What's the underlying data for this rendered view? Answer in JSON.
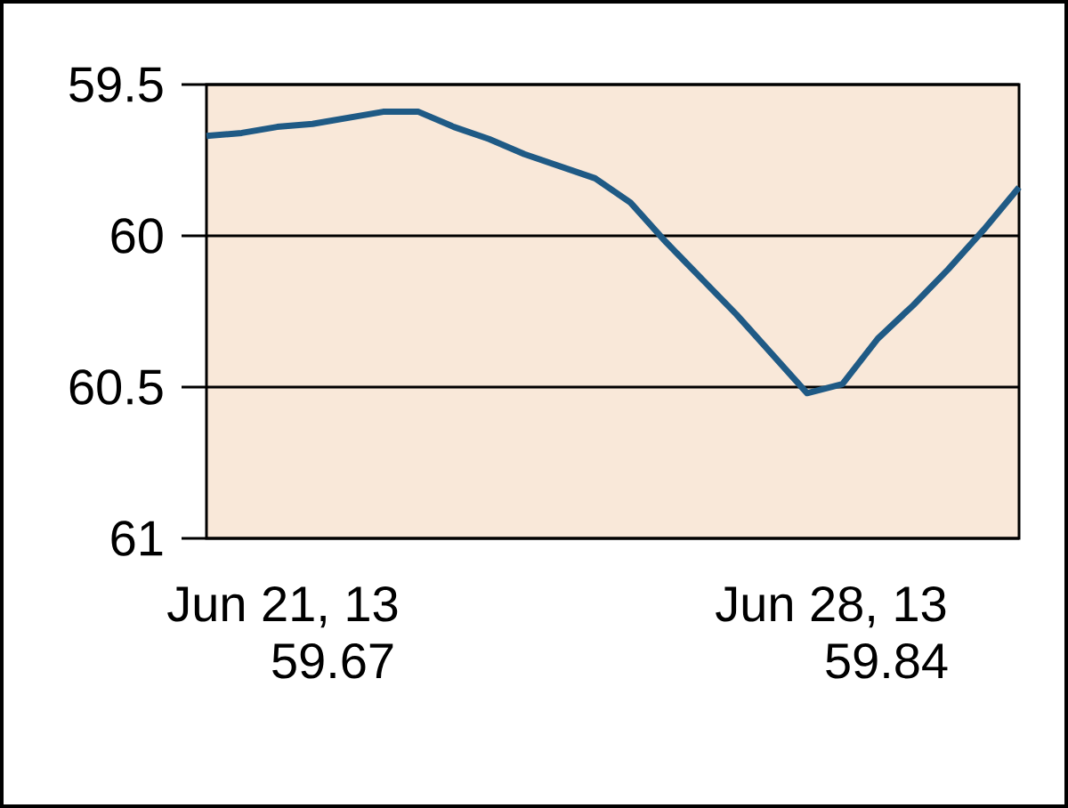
{
  "chart_data": {
    "type": "line",
    "categories": [
      null,
      null,
      null,
      null,
      null,
      null,
      null,
      null,
      null,
      null,
      null,
      null,
      null,
      null,
      null,
      null,
      null,
      null,
      null,
      null,
      null,
      null,
      null,
      null
    ],
    "series": [
      {
        "color": "#1f5a85",
        "values": [
          59.67,
          59.66,
          59.64,
          59.63,
          59.61,
          59.59,
          59.59,
          59.64,
          59.68,
          59.73,
          59.77,
          59.81,
          59.89,
          60.02,
          60.14,
          60.26,
          60.39,
          60.52,
          60.49,
          60.34,
          60.23,
          60.11,
          59.98,
          59.84
        ]
      }
    ],
    "ylim": [
      61,
      59.5
    ],
    "yticks": [
      59.5,
      60,
      60.5,
      61
    ],
    "grid": "y",
    "tick_labels": "y",
    "marker": "none",
    "line_style": "solid",
    "annotations": [
      "Jun 21, 13",
      "59.67",
      "Jun 28, 13",
      "59.84"
    ]
  }
}
